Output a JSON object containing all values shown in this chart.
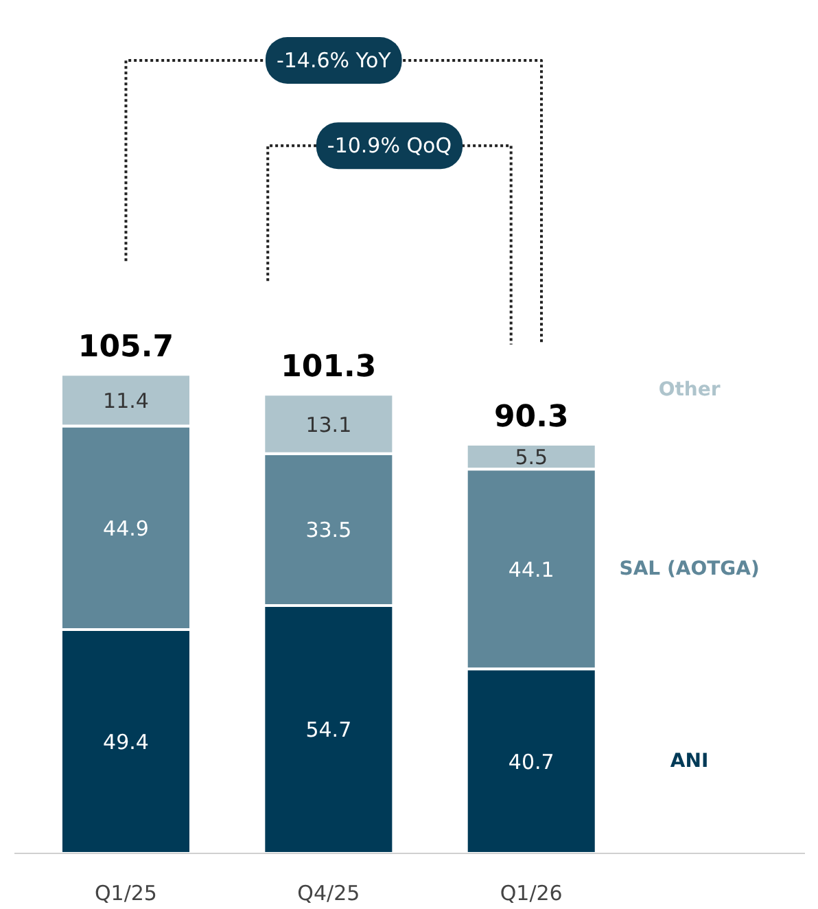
{
  "chart_data": {
    "type": "bar",
    "stacked": true,
    "categories": [
      "Q1/25",
      "Q4/25",
      "Q1/26"
    ],
    "series": [
      {
        "name": "ANI",
        "color": "#003a57",
        "values": [
          49.4,
          54.7,
          40.7
        ]
      },
      {
        "name": "SAL (AOTGA)",
        "color": "#5f8799",
        "values": [
          44.9,
          33.5,
          44.1
        ]
      },
      {
        "name": "Other",
        "color": "#aec4cc",
        "values": [
          11.4,
          13.1,
          5.5
        ]
      }
    ],
    "data_labels": true,
    "totals": [
      "105.7",
      "101.3",
      "90.3"
    ],
    "annotations": [
      "-14.6% YoY",
      "-10.9% QoQ"
    ],
    "legend": false,
    "grid": false
  }
}
